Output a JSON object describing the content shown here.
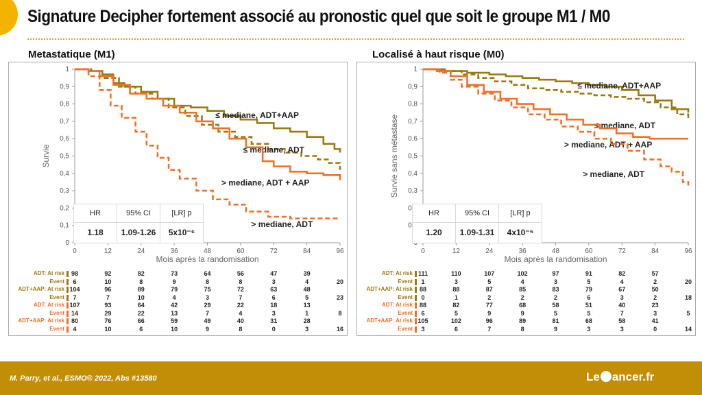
{
  "title": "Signature Decipher fortement associé au pronostic quel que soit le groupe M1 / M0",
  "footer": {
    "citation": "M. Parry, et al.,  ESMO® 2022, Abs #13580",
    "logo": "Le Cancer.fr"
  },
  "colors": {
    "olive": "#9a7a10",
    "orange": "#f07028",
    "gold_accent": "#f2b400",
    "footer": "#c28e06"
  },
  "panels": [
    {
      "title": "Metastatique (M1)",
      "hr_table": {
        "headers": [
          "HR",
          "95% CI",
          "[LR] p"
        ],
        "values": [
          "1.18",
          "1.09-1.26",
          "5x10⁻⁶"
        ]
      },
      "risk_table": [
        {
          "label": "ADT: At risk",
          "values": [
            "98",
            "92",
            "82",
            "73",
            "64",
            "56",
            "47",
            "39",
            ""
          ],
          "color": "olive"
        },
        {
          "label": "Event",
          "values": [
            "6",
            "10",
            "8",
            "9",
            "8",
            "8",
            "3",
            "4",
            "20"
          ],
          "color": "olive"
        },
        {
          "label": "ADT+AAP: At risk",
          "values": [
            "104",
            "96",
            "89",
            "79",
            "75",
            "72",
            "63",
            "48",
            ""
          ],
          "color": "olive"
        },
        {
          "label": "Event",
          "values": [
            "7",
            "7",
            "10",
            "4",
            "3",
            "7",
            "6",
            "5",
            "23"
          ],
          "color": "olive"
        },
        {
          "label": "ADT: At risk",
          "values": [
            "107",
            "93",
            "64",
            "42",
            "29",
            "22",
            "18",
            "13",
            ""
          ],
          "color": "orange"
        },
        {
          "label": "Event",
          "values": [
            "14",
            "29",
            "22",
            "13",
            "7",
            "4",
            "3",
            "1",
            "8"
          ],
          "color": "orange"
        },
        {
          "label": "ADT+AAP: At risk",
          "values": [
            "80",
            "76",
            "66",
            "59",
            "49",
            "40",
            "31",
            "28",
            ""
          ],
          "color": "orange"
        },
        {
          "label": "Event",
          "values": [
            "4",
            "10",
            "6",
            "10",
            "9",
            "8",
            "0",
            "3",
            "16"
          ],
          "color": "orange"
        }
      ]
    },
    {
      "title": "Localisé à haut risque (M0)",
      "hr_table": {
        "headers": [
          "HR",
          "95% CI",
          "[LR] p"
        ],
        "values": [
          "1.20",
          "1.09-1.31",
          "4x10⁻⁵"
        ]
      },
      "risk_table": [
        {
          "label": "ADT: At risk",
          "values": [
            "111",
            "110",
            "107",
            "102",
            "97",
            "91",
            "82",
            "57",
            ""
          ],
          "color": "olive"
        },
        {
          "label": "Event",
          "values": [
            "1",
            "3",
            "5",
            "4",
            "3",
            "5",
            "4",
            "2",
            "20"
          ],
          "color": "olive"
        },
        {
          "label": "ADT+AAP: At risk",
          "values": [
            "88",
            "88",
            "87",
            "85",
            "83",
            "79",
            "67",
            "50",
            ""
          ],
          "color": "olive"
        },
        {
          "label": "Event",
          "values": [
            "0",
            "1",
            "2",
            "2",
            "2",
            "6",
            "3",
            "2",
            "18"
          ],
          "color": "olive"
        },
        {
          "label": "ADT: At risk",
          "values": [
            "88",
            "82",
            "77",
            "68",
            "58",
            "51",
            "40",
            "23",
            ""
          ],
          "color": "orange"
        },
        {
          "label": "Event",
          "values": [
            "6",
            "5",
            "9",
            "9",
            "5",
            "5",
            "7",
            "3",
            "5"
          ],
          "color": "orange"
        },
        {
          "label": "ADT+AAP: At risk",
          "values": [
            "105",
            "102",
            "96",
            "89",
            "81",
            "68",
            "58",
            "41",
            ""
          ],
          "color": "orange"
        },
        {
          "label": "Event",
          "values": [
            "3",
            "6",
            "7",
            "8",
            "9",
            "3",
            "3",
            "0",
            "14"
          ],
          "color": "orange"
        }
      ]
    }
  ],
  "chart_data": [
    {
      "type": "line",
      "title": "Metastatique (M1)",
      "xlabel": "Mois après la randomisation",
      "ylabel": "Survie",
      "xlim": [
        0,
        96
      ],
      "ylim": [
        0,
        1
      ],
      "xticks": [
        0,
        12,
        24,
        36,
        48,
        60,
        72,
        84,
        96
      ],
      "yticks": [
        0,
        0.1,
        0.2,
        0.3,
        0.4,
        0.5,
        0.6,
        0.7,
        0.8,
        0.9,
        1
      ],
      "ytick_labels": [
        "0",
        "0,1",
        "0,2",
        "0,3",
        "0,4",
        "0,5",
        "0,6",
        "0,7",
        "0,8",
        "0,9",
        "1"
      ],
      "series": [
        {
          "name": "≤ mediane, ADT+AAP",
          "color": "olive",
          "dash": false,
          "label_pos": [
            66,
            0.72
          ],
          "points": [
            [
              0,
              1
            ],
            [
              5,
              0.99
            ],
            [
              10,
              0.97
            ],
            [
              14,
              0.92
            ],
            [
              18,
              0.9
            ],
            [
              24,
              0.87
            ],
            [
              30,
              0.83
            ],
            [
              36,
              0.79
            ],
            [
              42,
              0.78
            ],
            [
              48,
              0.76
            ],
            [
              54,
              0.73
            ],
            [
              60,
              0.71
            ],
            [
              66,
              0.69
            ],
            [
              72,
              0.66
            ],
            [
              78,
              0.64
            ],
            [
              84,
              0.61
            ],
            [
              90,
              0.57
            ],
            [
              94,
              0.54
            ],
            [
              96,
              0.52
            ]
          ]
        },
        {
          "name": "≤ mediane, ADT",
          "color": "olive",
          "dash": true,
          "label_pos": [
            72,
            0.52
          ],
          "points": [
            [
              0,
              1
            ],
            [
              6,
              0.99
            ],
            [
              10,
              0.95
            ],
            [
              16,
              0.9
            ],
            [
              22,
              0.86
            ],
            [
              28,
              0.83
            ],
            [
              34,
              0.78
            ],
            [
              40,
              0.73
            ],
            [
              46,
              0.68
            ],
            [
              52,
              0.64
            ],
            [
              58,
              0.61
            ],
            [
              64,
              0.57
            ],
            [
              70,
              0.54
            ],
            [
              76,
              0.52
            ],
            [
              82,
              0.5
            ],
            [
              88,
              0.48
            ],
            [
              92,
              0.46
            ],
            [
              96,
              0.42
            ]
          ]
        },
        {
          "name": "> mediane, ADT + AAP",
          "color": "orange",
          "dash": false,
          "label_pos": [
            69,
            0.33
          ],
          "points": [
            [
              0,
              1
            ],
            [
              5,
              0.99
            ],
            [
              9,
              0.96
            ],
            [
              14,
              0.91
            ],
            [
              20,
              0.86
            ],
            [
              26,
              0.83
            ],
            [
              32,
              0.79
            ],
            [
              38,
              0.75
            ],
            [
              44,
              0.7
            ],
            [
              50,
              0.66
            ],
            [
              56,
              0.6
            ],
            [
              62,
              0.55
            ],
            [
              68,
              0.47
            ],
            [
              72,
              0.44
            ],
            [
              78,
              0.41
            ],
            [
              84,
              0.4
            ],
            [
              90,
              0.39
            ],
            [
              96,
              0.36
            ]
          ]
        },
        {
          "name": "> mediane, ADT",
          "color": "orange",
          "dash": true,
          "label_pos": [
            75,
            0.09
          ],
          "points": [
            [
              0,
              1
            ],
            [
              5,
              0.96
            ],
            [
              9,
              0.88
            ],
            [
              13,
              0.79
            ],
            [
              17,
              0.72
            ],
            [
              22,
              0.64
            ],
            [
              26,
              0.56
            ],
            [
              30,
              0.49
            ],
            [
              34,
              0.42
            ],
            [
              38,
              0.37
            ],
            [
              44,
              0.3
            ],
            [
              50,
              0.25
            ],
            [
              56,
              0.22
            ],
            [
              62,
              0.18
            ],
            [
              70,
              0.15
            ],
            [
              78,
              0.14
            ],
            [
              88,
              0.14
            ],
            [
              96,
              0.14
            ]
          ]
        }
      ]
    },
    {
      "type": "line",
      "title": "Localisé à haut risque (M0)",
      "xlabel": "Mois après la randomisation",
      "ylabel": "Survie sans métastase",
      "xlim": [
        0,
        96
      ],
      "ylim": [
        0,
        1
      ],
      "xticks": [
        0,
        12,
        24,
        36,
        48,
        60,
        72,
        84,
        96
      ],
      "yticks": [
        0,
        0.1,
        0.2,
        0.3,
        0.4,
        0.5,
        0.6,
        0.7,
        0.8,
        0.9,
        1
      ],
      "ytick_labels": [
        "0",
        "0,1",
        "0,2",
        "0,3",
        "0,4",
        "0,5",
        "0,6",
        "0,7",
        "0,8",
        "0,9",
        "1"
      ],
      "series": [
        {
          "name": "≤ mediane, ADT+AAP",
          "color": "olive",
          "dash": false,
          "label_pos": [
            71,
            0.89
          ],
          "points": [
            [
              0,
              1
            ],
            [
              8,
              0.99
            ],
            [
              16,
              0.98
            ],
            [
              24,
              0.97
            ],
            [
              30,
              0.96
            ],
            [
              36,
              0.95
            ],
            [
              42,
              0.94
            ],
            [
              48,
              0.93
            ],
            [
              54,
              0.92
            ],
            [
              60,
              0.91
            ],
            [
              66,
              0.9
            ],
            [
              72,
              0.88
            ],
            [
              78,
              0.85
            ],
            [
              84,
              0.82
            ],
            [
              90,
              0.77
            ],
            [
              96,
              0.75
            ]
          ]
        },
        {
          "name": "≤ mediane, ADT",
          "color": "olive",
          "dash": true,
          "label_pos": [
            73,
            0.66
          ],
          "points": [
            [
              0,
              1
            ],
            [
              8,
              0.99
            ],
            [
              14,
              0.97
            ],
            [
              20,
              0.95
            ],
            [
              26,
              0.93
            ],
            [
              32,
              0.91
            ],
            [
              38,
              0.89
            ],
            [
              44,
              0.88
            ],
            [
              50,
              0.87
            ],
            [
              56,
              0.86
            ],
            [
              62,
              0.85
            ],
            [
              68,
              0.84
            ],
            [
              74,
              0.83
            ],
            [
              80,
              0.81
            ],
            [
              86,
              0.78
            ],
            [
              92,
              0.74
            ],
            [
              96,
              0.72
            ]
          ]
        },
        {
          "name": "> mediane, ADT + AAP",
          "color": "orange",
          "dash": false,
          "label_pos": [
            67,
            0.55
          ],
          "points": [
            [
              0,
              1
            ],
            [
              5,
              0.99
            ],
            [
              10,
              0.96
            ],
            [
              16,
              0.91
            ],
            [
              22,
              0.87
            ],
            [
              28,
              0.83
            ],
            [
              34,
              0.8
            ],
            [
              40,
              0.77
            ],
            [
              46,
              0.74
            ],
            [
              52,
              0.71
            ],
            [
              58,
              0.68
            ],
            [
              64,
              0.66
            ],
            [
              70,
              0.63
            ],
            [
              76,
              0.61
            ],
            [
              82,
              0.6
            ],
            [
              88,
              0.6
            ],
            [
              96,
              0.6
            ]
          ]
        },
        {
          "name": "> mediane, ADT",
          "color": "orange",
          "dash": true,
          "label_pos": [
            69,
            0.38
          ],
          "points": [
            [
              0,
              1
            ],
            [
              6,
              0.98
            ],
            [
              10,
              0.94
            ],
            [
              14,
              0.9
            ],
            [
              20,
              0.86
            ],
            [
              26,
              0.82
            ],
            [
              32,
              0.78
            ],
            [
              38,
              0.74
            ],
            [
              44,
              0.71
            ],
            [
              50,
              0.67
            ],
            [
              56,
              0.64
            ],
            [
              62,
              0.6
            ],
            [
              68,
              0.57
            ],
            [
              74,
              0.53
            ],
            [
              80,
              0.48
            ],
            [
              86,
              0.44
            ],
            [
              90,
              0.41
            ],
            [
              94,
              0.35
            ],
            [
              96,
              0.33
            ]
          ]
        }
      ]
    }
  ]
}
